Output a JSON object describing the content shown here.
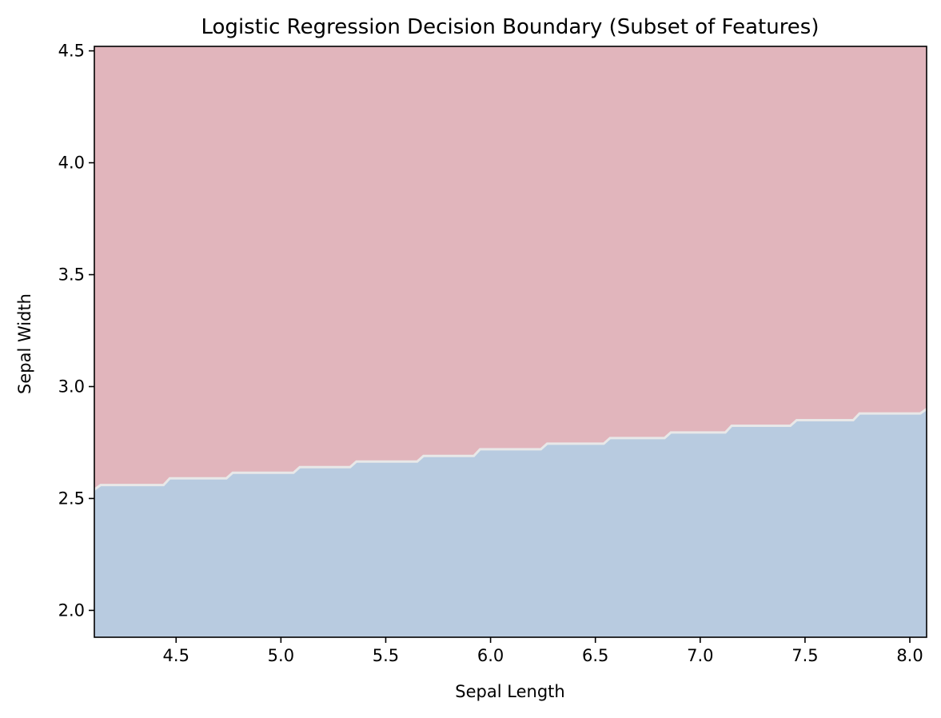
{
  "chart_data": {
    "type": "heatmap",
    "title": "Logistic Regression Decision Boundary (Subset of Features)",
    "xlabel": "Sepal Length",
    "ylabel": "Sepal Width",
    "xlim": [
      4.11,
      8.08
    ],
    "ylim": [
      1.88,
      4.52
    ],
    "x_ticks": [
      4.5,
      5.0,
      5.5,
      6.0,
      6.5,
      7.0,
      7.5,
      8.0
    ],
    "x_tick_labels": [
      "4.5",
      "5.0",
      "5.5",
      "6.0",
      "6.5",
      "7.0",
      "7.5",
      "8.0"
    ],
    "y_ticks": [
      2.0,
      2.5,
      3.0,
      3.5,
      4.0,
      4.5
    ],
    "y_tick_labels": [
      "2.0",
      "2.5",
      "3.0",
      "3.5",
      "4.0",
      "4.5"
    ],
    "grid": false,
    "regions": [
      {
        "label": "class above boundary",
        "color": "#e1b5bc"
      },
      {
        "label": "class below boundary",
        "color": "#b8cbe0"
      }
    ],
    "boundary_color": "#e8e8e8",
    "boundary_points": [
      {
        "x": 4.11,
        "y": 2.54
      },
      {
        "x": 4.14,
        "y": 2.56
      },
      {
        "x": 4.44,
        "y": 2.56
      },
      {
        "x": 4.47,
        "y": 2.59
      },
      {
        "x": 4.74,
        "y": 2.59
      },
      {
        "x": 4.77,
        "y": 2.615
      },
      {
        "x": 5.06,
        "y": 2.615
      },
      {
        "x": 5.09,
        "y": 2.64
      },
      {
        "x": 5.33,
        "y": 2.64
      },
      {
        "x": 5.36,
        "y": 2.665
      },
      {
        "x": 5.65,
        "y": 2.665
      },
      {
        "x": 5.68,
        "y": 2.69
      },
      {
        "x": 5.92,
        "y": 2.69
      },
      {
        "x": 5.95,
        "y": 2.72
      },
      {
        "x": 6.24,
        "y": 2.72
      },
      {
        "x": 6.27,
        "y": 2.745
      },
      {
        "x": 6.54,
        "y": 2.745
      },
      {
        "x": 6.57,
        "y": 2.77
      },
      {
        "x": 6.83,
        "y": 2.77
      },
      {
        "x": 6.86,
        "y": 2.795
      },
      {
        "x": 7.12,
        "y": 2.795
      },
      {
        "x": 7.15,
        "y": 2.825
      },
      {
        "x": 7.43,
        "y": 2.825
      },
      {
        "x": 7.46,
        "y": 2.85
      },
      {
        "x": 7.73,
        "y": 2.85
      },
      {
        "x": 7.76,
        "y": 2.88
      },
      {
        "x": 8.05,
        "y": 2.88
      },
      {
        "x": 8.08,
        "y": 2.9
      }
    ]
  }
}
